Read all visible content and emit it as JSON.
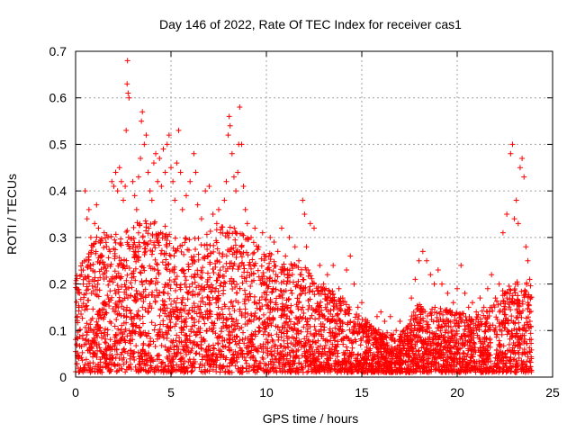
{
  "chart_data": {
    "type": "scatter",
    "title": "Day 146 of 2022, Rate Of TEC Index for receiver cas1",
    "xlabel": "GPS time / hours",
    "ylabel": "ROTI / TECUs",
    "xlim": [
      0,
      25
    ],
    "ylim": [
      0,
      0.7
    ],
    "x_ticks": [
      0,
      5,
      10,
      15,
      20,
      25
    ],
    "x_tick_labels": [
      "0",
      "5",
      "10",
      "15",
      "20",
      "25"
    ],
    "y_ticks": [
      0,
      0.1,
      0.2,
      0.3,
      0.4,
      0.5,
      0.6,
      0.7
    ],
    "y_tick_labels": [
      "0",
      "0.1",
      "0.2",
      "0.3",
      "0.4",
      "0.5",
      "0.6",
      "0.7"
    ],
    "grid": true,
    "marker": "+",
    "marker_color": "#ff0000",
    "series": [
      {
        "name": "ROTI",
        "points": [
          [
            0.1,
            0.13
          ],
          [
            0.2,
            0.18
          ],
          [
            0.3,
            0.22
          ],
          [
            0.4,
            0.2
          ],
          [
            0.5,
            0.4
          ],
          [
            0.6,
            0.34
          ],
          [
            0.7,
            0.36
          ],
          [
            0.8,
            0.3
          ],
          [
            0.9,
            0.28
          ],
          [
            1.0,
            0.33
          ],
          [
            1.1,
            0.37
          ],
          [
            1.2,
            0.32
          ],
          [
            1.3,
            0.29
          ],
          [
            1.5,
            0.31
          ],
          [
            1.7,
            0.3
          ],
          [
            1.8,
            0.27
          ],
          [
            1.9,
            0.42
          ],
          [
            2.0,
            0.41
          ],
          [
            2.1,
            0.44
          ],
          [
            2.2,
            0.4
          ],
          [
            2.3,
            0.45
          ],
          [
            2.4,
            0.42
          ],
          [
            2.5,
            0.38
          ],
          [
            2.6,
            0.41
          ],
          [
            2.65,
            0.53
          ],
          [
            2.7,
            0.63
          ],
          [
            2.72,
            0.68
          ],
          [
            2.75,
            0.61
          ],
          [
            2.8,
            0.6
          ],
          [
            3.0,
            0.42
          ],
          [
            3.1,
            0.39
          ],
          [
            3.2,
            0.36
          ],
          [
            3.3,
            0.43
          ],
          [
            3.4,
            0.47
          ],
          [
            3.45,
            0.55
          ],
          [
            3.5,
            0.57
          ],
          [
            3.6,
            0.5
          ],
          [
            3.7,
            0.52
          ],
          [
            3.8,
            0.44
          ],
          [
            3.9,
            0.4
          ],
          [
            4.0,
            0.38
          ],
          [
            4.1,
            0.46
          ],
          [
            4.2,
            0.48
          ],
          [
            4.3,
            0.42
          ],
          [
            4.4,
            0.47
          ],
          [
            4.5,
            0.41
          ],
          [
            4.6,
            0.49
          ],
          [
            4.7,
            0.44
          ],
          [
            4.8,
            0.5
          ],
          [
            4.9,
            0.52
          ],
          [
            5.0,
            0.45
          ],
          [
            5.1,
            0.42
          ],
          [
            5.2,
            0.38
          ],
          [
            5.3,
            0.46
          ],
          [
            5.4,
            0.53
          ],
          [
            5.5,
            0.44
          ],
          [
            5.6,
            0.36
          ],
          [
            5.8,
            0.39
          ],
          [
            6.0,
            0.42
          ],
          [
            6.2,
            0.48
          ],
          [
            6.3,
            0.44
          ],
          [
            6.4,
            0.37
          ],
          [
            6.6,
            0.34
          ],
          [
            6.8,
            0.4
          ],
          [
            7.0,
            0.41
          ],
          [
            7.2,
            0.35
          ],
          [
            7.4,
            0.33
          ],
          [
            7.5,
            0.36
          ],
          [
            7.6,
            0.31
          ],
          [
            7.8,
            0.38
          ],
          [
            7.9,
            0.42
          ],
          [
            8.0,
            0.52
          ],
          [
            8.05,
            0.56
          ],
          [
            8.1,
            0.54
          ],
          [
            8.2,
            0.48
          ],
          [
            8.3,
            0.43
          ],
          [
            8.4,
            0.4
          ],
          [
            8.5,
            0.44
          ],
          [
            8.55,
            0.5
          ],
          [
            8.6,
            0.58
          ],
          [
            8.7,
            0.5
          ],
          [
            8.8,
            0.41
          ],
          [
            8.9,
            0.36
          ],
          [
            9.0,
            0.33
          ],
          [
            9.2,
            0.3
          ],
          [
            9.4,
            0.32
          ],
          [
            9.6,
            0.28
          ],
          [
            9.8,
            0.31
          ],
          [
            10.0,
            0.26
          ],
          [
            10.2,
            0.3
          ],
          [
            10.4,
            0.29
          ],
          [
            10.6,
            0.27
          ],
          [
            10.8,
            0.32
          ],
          [
            11.0,
            0.26
          ],
          [
            11.2,
            0.3
          ],
          [
            11.5,
            0.28
          ],
          [
            11.7,
            0.25
          ],
          [
            11.9,
            0.38
          ],
          [
            12.0,
            0.35
          ],
          [
            12.1,
            0.28
          ],
          [
            12.3,
            0.33
          ],
          [
            12.5,
            0.32
          ],
          [
            12.8,
            0.24
          ],
          [
            13.0,
            0.2
          ],
          [
            13.2,
            0.22
          ],
          [
            13.5,
            0.24
          ],
          [
            13.8,
            0.19
          ],
          [
            14.0,
            0.17
          ],
          [
            14.2,
            0.23
          ],
          [
            14.4,
            0.26
          ],
          [
            14.6,
            0.2
          ],
          [
            14.8,
            0.15
          ],
          [
            15.0,
            0.16
          ],
          [
            15.2,
            0.12
          ],
          [
            15.5,
            0.11
          ],
          [
            15.8,
            0.13
          ],
          [
            16.0,
            0.14
          ],
          [
            16.2,
            0.12
          ],
          [
            16.5,
            0.13
          ],
          [
            16.8,
            0.1
          ],
          [
            17.0,
            0.12
          ],
          [
            17.2,
            0.1
          ],
          [
            17.4,
            0.09
          ],
          [
            17.6,
            0.17
          ],
          [
            17.8,
            0.21
          ],
          [
            18.0,
            0.25
          ],
          [
            18.2,
            0.27
          ],
          [
            18.4,
            0.25
          ],
          [
            18.6,
            0.22
          ],
          [
            18.8,
            0.2
          ],
          [
            19.0,
            0.23
          ],
          [
            19.2,
            0.2
          ],
          [
            19.5,
            0.18
          ],
          [
            19.8,
            0.16
          ],
          [
            20.0,
            0.19
          ],
          [
            20.2,
            0.24
          ],
          [
            20.4,
            0.18
          ],
          [
            20.6,
            0.15
          ],
          [
            20.8,
            0.16
          ],
          [
            21.0,
            0.14
          ],
          [
            21.2,
            0.17
          ],
          [
            21.4,
            0.15
          ],
          [
            21.6,
            0.19
          ],
          [
            21.8,
            0.22
          ],
          [
            22.0,
            0.17
          ],
          [
            22.2,
            0.2
          ],
          [
            22.4,
            0.31
          ],
          [
            22.6,
            0.35
          ],
          [
            22.8,
            0.48
          ],
          [
            22.9,
            0.5
          ],
          [
            23.0,
            0.34
          ],
          [
            23.1,
            0.38
          ],
          [
            23.2,
            0.33
          ],
          [
            23.3,
            0.45
          ],
          [
            23.4,
            0.47
          ],
          [
            23.5,
            0.43
          ],
          [
            23.6,
            0.28
          ],
          [
            23.7,
            0.25
          ],
          [
            23.8,
            0.21
          ]
        ]
      }
    ],
    "band_profile_hours": [
      0,
      1,
      2,
      3,
      4,
      5,
      6,
      7,
      8,
      9,
      10,
      11,
      12,
      13,
      14,
      15,
      16,
      17,
      18,
      19,
      20,
      21,
      22,
      23,
      24
    ],
    "band_profile_upper": [
      0.22,
      0.3,
      0.31,
      0.33,
      0.34,
      0.32,
      0.3,
      0.32,
      0.33,
      0.3,
      0.27,
      0.25,
      0.24,
      0.2,
      0.17,
      0.13,
      0.1,
      0.09,
      0.16,
      0.15,
      0.14,
      0.13,
      0.17,
      0.21,
      0.2
    ],
    "band_lower": 0.01
  }
}
